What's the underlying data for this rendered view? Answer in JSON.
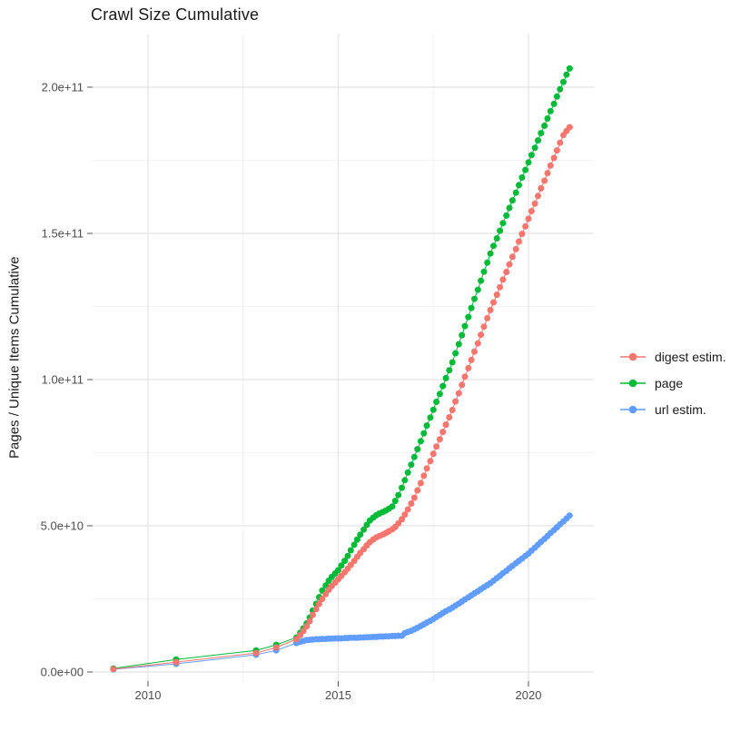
{
  "chart_data": {
    "type": "scatter",
    "subtype": "line-and-point",
    "title": "Crawl Size Cumulative",
    "xlabel": "",
    "ylabel": "Pages / Unique Items Cumulative",
    "x_unit": "year",
    "y_unit": "count",
    "y_value_scale_note": "point values stored in billions (1e9)",
    "xlim": [
      2008.5,
      2021.7
    ],
    "ylim": [
      -3000000000,
      218000000000
    ],
    "grid": true,
    "legend_position": "right-center",
    "axes": {
      "x_ticks": [
        {
          "value": 2010,
          "label": "2010"
        },
        {
          "value": 2015,
          "label": "2015"
        },
        {
          "value": 2020,
          "label": "2020"
        }
      ],
      "x_minor": [
        2012.5,
        2017.5
      ],
      "y_ticks": [
        {
          "value_e9": 0,
          "label": "0.0e+00"
        },
        {
          "value_e9": 50,
          "label": "5.0e+10"
        },
        {
          "value_e9": 100,
          "label": "1.0e+11"
        },
        {
          "value_e9": 150,
          "label": "1.5e+11"
        },
        {
          "value_e9": 200,
          "label": "2.0e+11"
        }
      ],
      "y_minor_e9": [
        25,
        75,
        125,
        175
      ]
    },
    "legend": {
      "items_order": [
        "digest estim.",
        "page",
        "url estim."
      ]
    },
    "draw_order": [
      "url estim.",
      "page",
      "digest estim."
    ],
    "series": [
      {
        "name": "digest estim.",
        "color": "#F8766D",
        "points_year_value_e9": [
          [
            2009.09,
            1.0
          ],
          [
            2010.74,
            3.4
          ],
          [
            2012.84,
            6.5
          ],
          [
            2013.37,
            8.4
          ],
          [
            2013.9,
            11.2
          ],
          [
            2014.0,
            12.6
          ],
          [
            2014.08,
            14.0
          ],
          [
            2014.17,
            15.6
          ],
          [
            2014.25,
            17.4
          ],
          [
            2014.33,
            19.5
          ],
          [
            2014.42,
            21.5
          ],
          [
            2014.5,
            23.3
          ],
          [
            2014.58,
            25.0
          ],
          [
            2014.67,
            26.6
          ],
          [
            2014.75,
            28.1
          ],
          [
            2014.83,
            29.4
          ],
          [
            2014.92,
            30.6
          ],
          [
            2015.0,
            31.7
          ],
          [
            2015.08,
            32.9
          ],
          [
            2015.17,
            34.1
          ],
          [
            2015.25,
            35.3
          ],
          [
            2015.33,
            36.6
          ],
          [
            2015.42,
            38.0
          ],
          [
            2015.5,
            39.4
          ],
          [
            2015.58,
            40.7
          ],
          [
            2015.67,
            42.0
          ],
          [
            2015.75,
            43.3
          ],
          [
            2015.83,
            44.4
          ],
          [
            2015.92,
            45.3
          ],
          [
            2016.0,
            46.0
          ],
          [
            2016.08,
            46.5
          ],
          [
            2016.17,
            47.0
          ],
          [
            2016.25,
            47.5
          ],
          [
            2016.33,
            48.1
          ],
          [
            2016.42,
            48.8
          ],
          [
            2016.5,
            49.6
          ],
          [
            2016.58,
            50.8
          ],
          [
            2016.67,
            52.2
          ],
          [
            2016.75,
            53.8
          ],
          [
            2016.83,
            55.6
          ],
          [
            2016.92,
            57.6
          ],
          [
            2017.0,
            59.6
          ],
          [
            2017.08,
            62.1
          ],
          [
            2017.17,
            64.6
          ],
          [
            2017.25,
            67.1
          ],
          [
            2017.33,
            69.6
          ],
          [
            2017.42,
            72.1
          ],
          [
            2017.5,
            74.6
          ],
          [
            2017.58,
            77.1
          ],
          [
            2017.67,
            79.6
          ],
          [
            2017.75,
            82.1
          ],
          [
            2017.83,
            84.6
          ],
          [
            2017.92,
            87.1
          ],
          [
            2018.0,
            89.6
          ],
          [
            2018.08,
            92.5
          ],
          [
            2018.17,
            95.3
          ],
          [
            2018.25,
            98.2
          ],
          [
            2018.33,
            101.0
          ],
          [
            2018.42,
            103.9
          ],
          [
            2018.5,
            106.7
          ],
          [
            2018.58,
            109.6
          ],
          [
            2018.67,
            112.4
          ],
          [
            2018.75,
            115.3
          ],
          [
            2018.83,
            118.1
          ],
          [
            2018.92,
            121.0
          ],
          [
            2019.0,
            123.8
          ],
          [
            2019.08,
            126.4
          ],
          [
            2019.17,
            129.0
          ],
          [
            2019.25,
            131.6
          ],
          [
            2019.33,
            134.2
          ],
          [
            2019.42,
            136.8
          ],
          [
            2019.5,
            139.4
          ],
          [
            2019.58,
            142.0
          ],
          [
            2019.67,
            144.6
          ],
          [
            2019.75,
            147.2
          ],
          [
            2019.83,
            149.8
          ],
          [
            2019.92,
            152.4
          ],
          [
            2020.0,
            155.0
          ],
          [
            2020.08,
            157.6
          ],
          [
            2020.17,
            160.2
          ],
          [
            2020.25,
            162.8
          ],
          [
            2020.33,
            165.4
          ],
          [
            2020.42,
            168.0
          ],
          [
            2020.5,
            170.6
          ],
          [
            2020.58,
            173.2
          ],
          [
            2020.67,
            175.8
          ],
          [
            2020.75,
            178.4
          ],
          [
            2020.83,
            181.0
          ],
          [
            2020.92,
            183.6
          ],
          [
            2021.0,
            185.0
          ],
          [
            2021.08,
            186.3
          ]
        ]
      },
      {
        "name": "page",
        "color": "#00BA38",
        "points_year_value_e9": [
          [
            2009.09,
            1.2
          ],
          [
            2010.74,
            4.3
          ],
          [
            2012.84,
            7.4
          ],
          [
            2013.37,
            9.3
          ],
          [
            2013.9,
            11.8
          ],
          [
            2014.0,
            13.4
          ],
          [
            2014.08,
            14.9
          ],
          [
            2014.17,
            16.6
          ],
          [
            2014.25,
            18.6
          ],
          [
            2014.33,
            21.0
          ],
          [
            2014.42,
            23.3
          ],
          [
            2014.5,
            25.6
          ],
          [
            2014.58,
            27.9
          ],
          [
            2014.67,
            29.6
          ],
          [
            2014.75,
            31.2
          ],
          [
            2014.83,
            32.5
          ],
          [
            2014.92,
            33.7
          ],
          [
            2015.0,
            34.8
          ],
          [
            2015.08,
            36.4
          ],
          [
            2015.17,
            38.0
          ],
          [
            2015.25,
            39.7
          ],
          [
            2015.33,
            41.6
          ],
          [
            2015.42,
            43.5
          ],
          [
            2015.5,
            45.3
          ],
          [
            2015.58,
            47.0
          ],
          [
            2015.67,
            48.7
          ],
          [
            2015.75,
            50.3
          ],
          [
            2015.83,
            51.8
          ],
          [
            2015.92,
            52.8
          ],
          [
            2016.0,
            53.6
          ],
          [
            2016.08,
            54.2
          ],
          [
            2016.17,
            54.7
          ],
          [
            2016.25,
            55.2
          ],
          [
            2016.33,
            55.8
          ],
          [
            2016.42,
            56.6
          ],
          [
            2016.5,
            58.5
          ],
          [
            2016.58,
            60.5
          ],
          [
            2016.67,
            63.0
          ],
          [
            2016.75,
            65.6
          ],
          [
            2016.83,
            68.2
          ],
          [
            2016.92,
            70.9
          ],
          [
            2017.0,
            73.5
          ],
          [
            2017.08,
            76.2
          ],
          [
            2017.17,
            78.9
          ],
          [
            2017.25,
            81.6
          ],
          [
            2017.33,
            84.3
          ],
          [
            2017.42,
            87.0
          ],
          [
            2017.5,
            89.7
          ],
          [
            2017.58,
            92.4
          ],
          [
            2017.67,
            95.1
          ],
          [
            2017.75,
            97.8
          ],
          [
            2017.83,
            100.5
          ],
          [
            2017.92,
            103.2
          ],
          [
            2018.0,
            105.9
          ],
          [
            2018.08,
            109.0
          ],
          [
            2018.17,
            112.1
          ],
          [
            2018.25,
            115.2
          ],
          [
            2018.33,
            118.3
          ],
          [
            2018.42,
            121.4
          ],
          [
            2018.5,
            124.5
          ],
          [
            2018.58,
            127.6
          ],
          [
            2018.67,
            130.7
          ],
          [
            2018.75,
            133.8
          ],
          [
            2018.83,
            136.9
          ],
          [
            2018.92,
            140.0
          ],
          [
            2019.0,
            143.1
          ],
          [
            2019.08,
            145.7
          ],
          [
            2019.17,
            148.3
          ],
          [
            2019.25,
            150.9
          ],
          [
            2019.33,
            153.5
          ],
          [
            2019.42,
            156.1
          ],
          [
            2019.5,
            158.7
          ],
          [
            2019.58,
            161.3
          ],
          [
            2019.67,
            163.9
          ],
          [
            2019.75,
            166.5
          ],
          [
            2019.83,
            169.1
          ],
          [
            2019.92,
            171.7
          ],
          [
            2020.0,
            174.3
          ],
          [
            2020.08,
            176.8
          ],
          [
            2020.17,
            179.3
          ],
          [
            2020.25,
            181.8
          ],
          [
            2020.33,
            184.3
          ],
          [
            2020.42,
            186.8
          ],
          [
            2020.5,
            189.3
          ],
          [
            2020.58,
            191.8
          ],
          [
            2020.67,
            194.3
          ],
          [
            2020.75,
            196.8
          ],
          [
            2020.83,
            199.3
          ],
          [
            2020.92,
            201.8
          ],
          [
            2021.0,
            204.3
          ],
          [
            2021.08,
            206.4
          ]
        ]
      },
      {
        "name": "url estim.",
        "color": "#619CFF",
        "points_year_value_e9": [
          [
            2009.09,
            0.9
          ],
          [
            2010.74,
            2.8
          ],
          [
            2012.84,
            5.9
          ],
          [
            2013.37,
            7.4
          ],
          [
            2013.9,
            9.9
          ],
          [
            2014.0,
            10.3
          ],
          [
            2014.08,
            10.6
          ],
          [
            2014.17,
            10.9
          ],
          [
            2014.25,
            11.0
          ],
          [
            2014.33,
            11.1
          ],
          [
            2014.42,
            11.2
          ],
          [
            2014.5,
            11.2
          ],
          [
            2014.58,
            11.3
          ],
          [
            2014.67,
            11.3
          ],
          [
            2014.75,
            11.4
          ],
          [
            2014.83,
            11.4
          ],
          [
            2014.92,
            11.5
          ],
          [
            2015.0,
            11.5
          ],
          [
            2015.08,
            11.5
          ],
          [
            2015.17,
            11.6
          ],
          [
            2015.25,
            11.6
          ],
          [
            2015.33,
            11.7
          ],
          [
            2015.42,
            11.7
          ],
          [
            2015.5,
            11.7
          ],
          [
            2015.58,
            11.8
          ],
          [
            2015.67,
            11.8
          ],
          [
            2015.75,
            11.9
          ],
          [
            2015.83,
            11.9
          ],
          [
            2015.92,
            12.0
          ],
          [
            2016.0,
            12.0
          ],
          [
            2016.08,
            12.1
          ],
          [
            2016.17,
            12.1
          ],
          [
            2016.25,
            12.2
          ],
          [
            2016.33,
            12.2
          ],
          [
            2016.42,
            12.3
          ],
          [
            2016.5,
            12.3
          ],
          [
            2016.58,
            12.4
          ],
          [
            2016.67,
            12.4
          ],
          [
            2016.75,
            13.3
          ],
          [
            2016.83,
            13.7
          ],
          [
            2016.92,
            14.1
          ],
          [
            2017.0,
            14.6
          ],
          [
            2017.08,
            15.1
          ],
          [
            2017.17,
            15.7
          ],
          [
            2017.25,
            16.3
          ],
          [
            2017.33,
            16.9
          ],
          [
            2017.42,
            17.5
          ],
          [
            2017.5,
            18.1
          ],
          [
            2017.58,
            18.8
          ],
          [
            2017.67,
            19.5
          ],
          [
            2017.75,
            20.2
          ],
          [
            2017.83,
            20.8
          ],
          [
            2017.92,
            21.4
          ],
          [
            2018.0,
            22.0
          ],
          [
            2018.08,
            22.7
          ],
          [
            2018.17,
            23.4
          ],
          [
            2018.25,
            24.1
          ],
          [
            2018.33,
            24.8
          ],
          [
            2018.42,
            25.5
          ],
          [
            2018.5,
            26.2
          ],
          [
            2018.58,
            26.9
          ],
          [
            2018.67,
            27.6
          ],
          [
            2018.75,
            28.3
          ],
          [
            2018.83,
            29.0
          ],
          [
            2018.92,
            29.7
          ],
          [
            2019.0,
            30.4
          ],
          [
            2019.08,
            31.2
          ],
          [
            2019.17,
            32.1
          ],
          [
            2019.25,
            32.9
          ],
          [
            2019.33,
            33.8
          ],
          [
            2019.42,
            34.6
          ],
          [
            2019.5,
            35.5
          ],
          [
            2019.58,
            36.3
          ],
          [
            2019.67,
            37.2
          ],
          [
            2019.75,
            38.0
          ],
          [
            2019.83,
            38.8
          ],
          [
            2019.92,
            39.7
          ],
          [
            2020.0,
            40.5
          ],
          [
            2020.08,
            41.5
          ],
          [
            2020.17,
            42.5
          ],
          [
            2020.25,
            43.5
          ],
          [
            2020.33,
            44.5
          ],
          [
            2020.42,
            45.5
          ],
          [
            2020.5,
            46.5
          ],
          [
            2020.58,
            47.5
          ],
          [
            2020.67,
            48.5
          ],
          [
            2020.75,
            49.5
          ],
          [
            2020.83,
            50.5
          ],
          [
            2020.92,
            51.5
          ],
          [
            2021.0,
            52.5
          ],
          [
            2021.08,
            53.5
          ]
        ]
      }
    ]
  }
}
